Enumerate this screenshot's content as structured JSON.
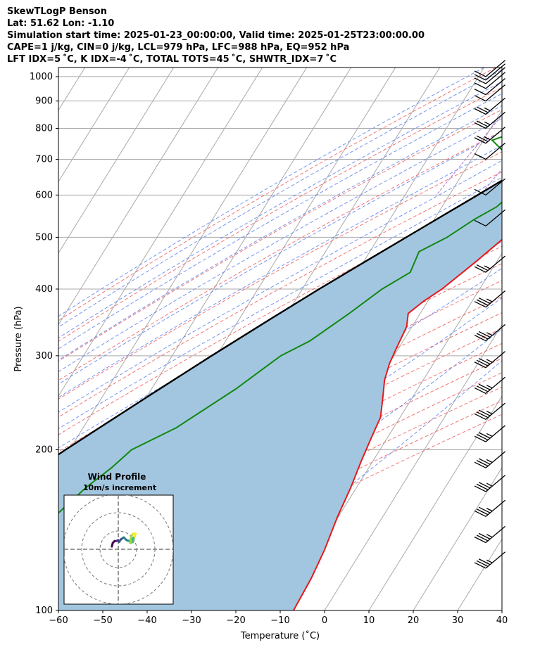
{
  "header": {
    "line1": "SkewTLogP Benson",
    "line2": "Lat: 51.62   Lon: -1.10",
    "line3": "Simulation start time: 2025-01-23_00:00:00, Valid time: 2025-01-25T23:00:00.00",
    "line4": "CAPE=1 j/kg, CIN=0 j/kg, LCL=979 hPa, LFC=988 hPa, EQ=952 hPa",
    "line5": "LFT IDX=5 ˚C, K IDX=-4 ˚C, TOTAL TOTS=45 ˚C, SHWTR_IDX=7 ˚C"
  },
  "colors": {
    "temperature": "#e41a1c",
    "dewpoint": "#118811",
    "parcel": "#000000",
    "cape_fill": "#a3c6e0",
    "dry_adiabat": "#ef6666",
    "moist_adiabat": "#6688ee",
    "mixing_ratio": "#b36fcf",
    "isotherm": "#a9a9a9"
  },
  "chart_data": {
    "type": "line",
    "xlabel": "Temperature (˚C)",
    "ylabel": "Pressure (hPa)",
    "xlim": [
      -60,
      40
    ],
    "ylim": [
      1040,
      100
    ],
    "y_scale": "log",
    "x_ticks": [
      "−60",
      "−50",
      "−40",
      "−30",
      "−20",
      "−10",
      "0",
      "10",
      "20",
      "30",
      "40"
    ],
    "y_ticks": [
      "100",
      "200",
      "300",
      "400",
      "500",
      "600",
      "700",
      "800",
      "900",
      "1000"
    ],
    "grid": true,
    "series": [
      {
        "key": "temperature",
        "values": [
          [
            1000,
            3.8
          ],
          [
            950,
            3.2
          ],
          [
            900,
            1.7
          ],
          [
            850,
            0.8
          ],
          [
            800,
            0.0
          ],
          [
            750,
            -1.2
          ],
          [
            700,
            -3.5
          ],
          [
            650,
            -5.4
          ],
          [
            600,
            -7.3
          ],
          [
            550,
            -9.2
          ],
          [
            500,
            -11.6
          ],
          [
            450,
            -14.7
          ],
          [
            400,
            -18.5
          ],
          [
            380,
            -20.9
          ],
          [
            360,
            -22.7
          ],
          [
            340,
            -21.2
          ],
          [
            310,
            -20.5
          ],
          [
            290,
            -19.9
          ],
          [
            270,
            -18.7
          ],
          [
            250,
            -16.6
          ],
          [
            230,
            -14.4
          ],
          [
            210,
            -13.6
          ],
          [
            190,
            -12.6
          ],
          [
            170,
            -11.3
          ],
          [
            150,
            -10.2
          ],
          [
            130,
            -8.5
          ],
          [
            115,
            -7.5
          ],
          [
            100,
            -7.0
          ]
        ]
      },
      {
        "key": "dewpoint",
        "values": [
          [
            990,
            1.0
          ],
          [
            950,
            -2.0
          ],
          [
            920,
            -5.0
          ],
          [
            900,
            -7.0
          ],
          [
            870,
            -12.0
          ],
          [
            830,
            -18.0
          ],
          [
            800,
            -22.0
          ],
          [
            760,
            -28.0
          ],
          [
            700,
            -21.0
          ],
          [
            670,
            -18.0
          ],
          [
            620,
            -15.3
          ],
          [
            570,
            -17.7
          ],
          [
            540,
            -21.0
          ],
          [
            500,
            -24.6
          ],
          [
            470,
            -28.9
          ],
          [
            430,
            -28.0
          ],
          [
            400,
            -32.0
          ],
          [
            360,
            -36.0
          ],
          [
            320,
            -41.0
          ],
          [
            300,
            -45.5
          ],
          [
            260,
            -51.0
          ],
          [
            220,
            -59.0
          ],
          [
            200,
            -66.0
          ],
          [
            185,
            -68.0
          ],
          [
            170,
            -71.0
          ],
          [
            150,
            -74.0
          ],
          [
            120,
            -79.0
          ],
          [
            100,
            -83.0
          ]
        ]
      },
      {
        "key": "parcel",
        "values": [
          [
            1000,
            4.3
          ],
          [
            950,
            1.5
          ],
          [
            900,
            -1.5
          ],
          [
            850,
            -4.6
          ],
          [
            800,
            -7.9
          ],
          [
            750,
            -11.3
          ],
          [
            700,
            -15.1
          ],
          [
            650,
            -19.2
          ],
          [
            600,
            -23.6
          ],
          [
            550,
            -28.5
          ],
          [
            500,
            -33.8
          ],
          [
            450,
            -39.7
          ],
          [
            400,
            -46.2
          ],
          [
            350,
            -53.2
          ],
          [
            300,
            -61.1
          ],
          [
            250,
            -70.1
          ],
          [
            200,
            -80.9
          ],
          [
            150,
            -94.1
          ],
          [
            120,
            -103.5
          ],
          [
            100,
            -110.5
          ]
        ]
      }
    ],
    "wind_barbs": [
      {
        "p": 1000,
        "speed": 10
      },
      {
        "p": 985,
        "speed": 10
      },
      {
        "p": 970,
        "speed": 10
      },
      {
        "p": 950,
        "speed": 10
      },
      {
        "p": 925,
        "speed": 10
      },
      {
        "p": 900,
        "speed": 10
      },
      {
        "p": 850,
        "speed": 15
      },
      {
        "p": 800,
        "speed": 15
      },
      {
        "p": 750,
        "speed": 15
      },
      {
        "p": 700,
        "speed": 10
      },
      {
        "p": 600,
        "speed": 10
      },
      {
        "p": 525,
        "speed": 10
      },
      {
        "p": 430,
        "speed": 15
      },
      {
        "p": 370,
        "speed": 25
      },
      {
        "p": 320,
        "speed": 25
      },
      {
        "p": 285,
        "speed": 25
      },
      {
        "p": 255,
        "speed": 25
      },
      {
        "p": 228,
        "speed": 25
      },
      {
        "p": 207,
        "speed": 25
      },
      {
        "p": 185,
        "speed": 25
      },
      {
        "p": 167,
        "speed": 25
      },
      {
        "p": 150,
        "speed": 25
      },
      {
        "p": 134,
        "speed": 25
      },
      {
        "p": 120,
        "speed": 25
      }
    ],
    "hodograph": {
      "title": "Wind Profile",
      "subtitle": "10m/s increment",
      "points": [
        [
          -3.5,
          1.5
        ],
        [
          -3.0,
          3.5
        ],
        [
          -2.0,
          4.5
        ],
        [
          -1.0,
          4.5
        ],
        [
          0.0,
          5.0
        ],
        [
          0.5,
          4.0
        ],
        [
          1.5,
          5.5
        ],
        [
          3.0,
          6.5
        ],
        [
          4.5,
          5.0
        ],
        [
          6.0,
          4.5
        ],
        [
          7.5,
          5.5
        ],
        [
          8.5,
          6.5
        ],
        [
          8.0,
          4.0
        ],
        [
          6.5,
          3.5
        ],
        [
          7.0,
          7.0
        ],
        [
          8.0,
          8.5
        ],
        [
          9.5,
          8.5
        ],
        [
          9.0,
          7.0
        ]
      ]
    }
  }
}
